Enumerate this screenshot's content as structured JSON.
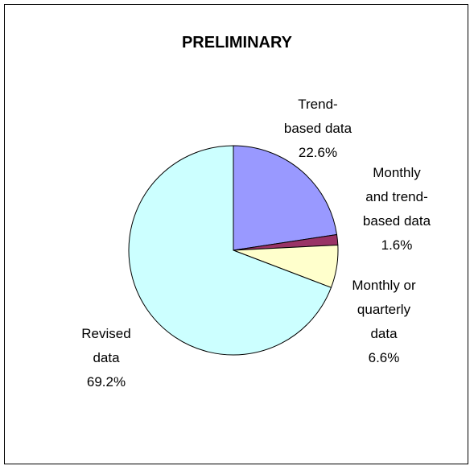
{
  "chart_data": {
    "type": "pie",
    "title": "PRELIMINARY",
    "categories": [
      "Trend-based data",
      "Monthly and trend-based data",
      "Monthly or quarterly data",
      "Revised data"
    ],
    "values": [
      22.6,
      1.6,
      6.6,
      69.2
    ],
    "value_labels": [
      "22.6%",
      "1.6%",
      "6.6%",
      "69.2%"
    ],
    "colors": [
      "#9999ff",
      "#993366",
      "#ffffcc",
      "#ccffff"
    ]
  }
}
